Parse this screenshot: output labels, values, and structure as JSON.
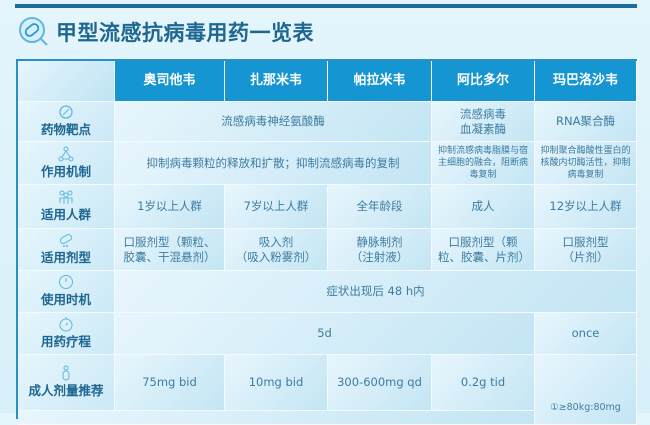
{
  "title": "甲型流感抗病毒用药一览表",
  "colors": {
    "header": "#1596d2",
    "title": "#1e6791",
    "border": "#2a8fc2"
  },
  "columns": [
    "奥司他韦",
    "扎那米韦",
    "帕拉米韦",
    "阿比多尔",
    "玛巴洛沙韦"
  ],
  "rows": {
    "target": {
      "label": "药物靶点",
      "icon": "target-icon",
      "neuraminidase": "流感病毒神经氨酸酶",
      "arbidol": "流感病毒\n血凝素酶",
      "baloxavir": "RNA聚合酶"
    },
    "mechanism": {
      "label": "作用机制",
      "icon": "molecule-icon",
      "na": "抑制病毒颗粒的释放和扩散；抑制流感病毒的复制",
      "arbidol": "抑制流感病毒脂膜与宿主细胞的融合，阻断病毒复制",
      "baloxavir": "抑制聚合酶酸性蛋白的核酸内切酶活性，抑制病毒复制"
    },
    "population": {
      "label": "适用人群",
      "icon": "people-icon",
      "values": [
        "1岁以上人群",
        "7岁以上人群",
        "全年龄段",
        "成人",
        "12岁以上人群"
      ]
    },
    "form": {
      "label": "适用剂型",
      "icon": "pill-icon",
      "values": [
        "口服剂型（颗粒、胶囊、干混悬剂）",
        "吸入剂\n（吸入粉雾剂）",
        "静脉制剂\n（注射液）",
        "口服剂型（颗粒、胶囊、片剂）",
        "口服剂型\n（片剂）"
      ]
    },
    "timing": {
      "label": "使用时机",
      "icon": "clock-icon",
      "value": "症状出现后 48 h内"
    },
    "course": {
      "label": "用药疗程",
      "icon": "stopwatch-icon",
      "value": "5d",
      "baloxavir": "once"
    },
    "dose": {
      "label": "成人剂量推荐",
      "icon": "person-icon",
      "values": [
        "75mg bid",
        "10mg bid",
        "300-600mg qd",
        "0.2g tid"
      ],
      "baloxavir": "①≥80kg:80mg"
    }
  }
}
